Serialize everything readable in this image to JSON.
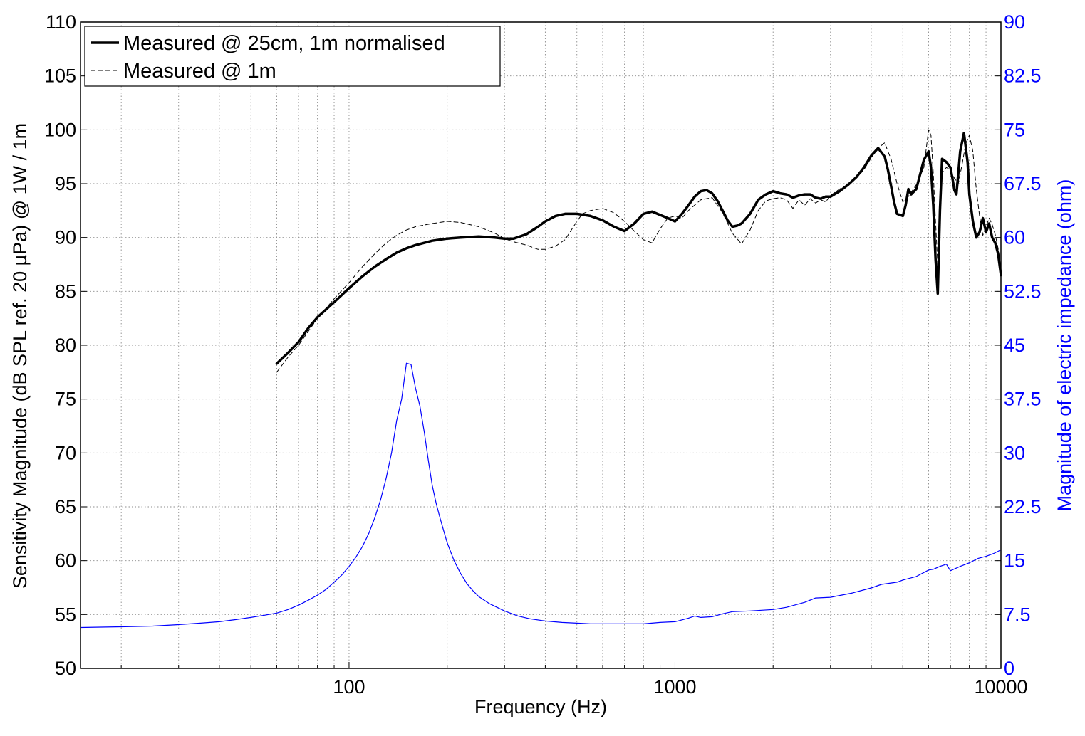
{
  "chart_data": {
    "type": "line",
    "title": "",
    "xlabel": "Frequency (Hz)",
    "ylabel_left": "Sensitivity Magnitude (dB SPL ref. 20 µPa) @ 1W / 1m",
    "ylabel_right": "Magnitude of electric impedance (ohm)",
    "x_scale": "log",
    "xlim": [
      15,
      10000
    ],
    "ylim_left": [
      50,
      110
    ],
    "ylim_right": [
      0,
      90
    ],
    "x_ticks": [
      100,
      1000,
      10000
    ],
    "x_tick_labels": [
      "100",
      "1000",
      "10000"
    ],
    "y_left_ticks": [
      50,
      55,
      60,
      65,
      70,
      75,
      80,
      85,
      90,
      95,
      100,
      105,
      110
    ],
    "y_left_tick_labels": [
      "50",
      "55",
      "60",
      "65",
      "70",
      "75",
      "80",
      "85",
      "90",
      "95",
      "100",
      "105",
      "110"
    ],
    "y_right_ticks": [
      0,
      7.5,
      15,
      22.5,
      30,
      37.5,
      45,
      52.5,
      60,
      67.5,
      75,
      82.5,
      90
    ],
    "y_right_tick_labels": [
      "0",
      "7.5",
      "15",
      "22.5",
      "30",
      "37.5",
      "45",
      "52.5",
      "60",
      "67.5",
      "75",
      "82.5",
      "90"
    ],
    "grid": true,
    "legend_position": "top-left",
    "colors": {
      "spl": "#000000",
      "impedance": "#0000ff",
      "grid": "#8c8c8c"
    },
    "series": [
      {
        "name": "Measured @ 25cm, 1m normalised",
        "axis": "left",
        "style": "solid-thick",
        "x": [
          60,
          65,
          70,
          75,
          80,
          90,
          100,
          110,
          120,
          130,
          140,
          150,
          160,
          170,
          180,
          200,
          220,
          250,
          280,
          300,
          320,
          350,
          380,
          400,
          430,
          460,
          500,
          550,
          600,
          650,
          700,
          750,
          800,
          850,
          900,
          950,
          1000,
          1050,
          1100,
          1150,
          1200,
          1250,
          1300,
          1350,
          1400,
          1450,
          1500,
          1550,
          1600,
          1700,
          1800,
          1900,
          2000,
          2100,
          2200,
          2300,
          2400,
          2500,
          2600,
          2700,
          2800,
          2900,
          3000,
          3200,
          3400,
          3600,
          3800,
          4000,
          4200,
          4400,
          4500,
          4600,
          4700,
          4800,
          5000,
          5100,
          5200,
          5300,
          5500,
          5800,
          6000,
          6100,
          6200,
          6300,
          6400,
          6500,
          6600,
          6800,
          7000,
          7100,
          7200,
          7300,
          7400,
          7500,
          7700,
          7900,
          8000,
          8200,
          8400,
          8600,
          8800,
          9000,
          9200,
          9400,
          9600,
          9800,
          10000
        ],
        "y": [
          78.3,
          79.3,
          80.3,
          81.6,
          82.6,
          84.0,
          85.3,
          86.4,
          87.3,
          88.0,
          88.6,
          89.0,
          89.3,
          89.5,
          89.7,
          89.9,
          90.0,
          90.1,
          90.0,
          89.9,
          89.9,
          90.3,
          91.0,
          91.5,
          92.0,
          92.2,
          92.2,
          92.0,
          91.6,
          91.0,
          90.6,
          91.3,
          92.2,
          92.4,
          92.1,
          91.8,
          91.5,
          92.2,
          93.0,
          93.8,
          94.3,
          94.4,
          94.1,
          93.4,
          92.5,
          91.6,
          91.0,
          91.1,
          91.3,
          92.2,
          93.5,
          94.0,
          94.3,
          94.1,
          94.0,
          93.7,
          93.9,
          94.0,
          94.0,
          93.7,
          93.6,
          93.8,
          93.8,
          94.3,
          94.9,
          95.6,
          96.5,
          97.6,
          98.3,
          97.5,
          96.3,
          94.8,
          93.3,
          92.2,
          92.0,
          93.0,
          94.5,
          94.0,
          94.5,
          97.2,
          98.0,
          96.5,
          93.0,
          88.0,
          84.8,
          92.5,
          97.3,
          97.0,
          96.5,
          95.5,
          94.4,
          94.0,
          96.0,
          98.0,
          99.7,
          97.0,
          94.0,
          91.5,
          90.0,
          90.5,
          91.8,
          90.5,
          91.3,
          90.0,
          89.5,
          88.5,
          86.5
        ]
      },
      {
        "name": "Measured @ 1m",
        "axis": "left",
        "style": "dashed-thin",
        "x": [
          60,
          65,
          70,
          80,
          90,
          100,
          110,
          120,
          130,
          140,
          150,
          160,
          180,
          200,
          220,
          250,
          280,
          300,
          320,
          350,
          380,
          400,
          430,
          460,
          500,
          520,
          550,
          600,
          650,
          700,
          750,
          800,
          850,
          900,
          950,
          1000,
          1050,
          1100,
          1200,
          1300,
          1400,
          1500,
          1600,
          1700,
          1800,
          1900,
          2000,
          2100,
          2200,
          2300,
          2400,
          2500,
          2600,
          2700,
          2800,
          2900,
          3000,
          3200,
          3400,
          3600,
          3800,
          4000,
          4200,
          4400,
          4500,
          4600,
          4800,
          5000,
          5200,
          5500,
          5800,
          6000,
          6100,
          6200,
          6300,
          6400,
          6500,
          6600,
          6800,
          7000,
          7200,
          7400,
          7600,
          7800,
          8000,
          8200,
          8400,
          8600,
          8800,
          9000,
          9200,
          9400,
          9600,
          9800,
          10000
        ],
        "y": [
          77.5,
          78.9,
          80.0,
          82.5,
          84.3,
          85.8,
          87.3,
          88.5,
          89.5,
          90.2,
          90.7,
          91.0,
          91.3,
          91.5,
          91.4,
          91.0,
          90.4,
          89.9,
          89.6,
          89.3,
          88.9,
          88.9,
          89.2,
          89.8,
          91.5,
          92.2,
          92.5,
          92.7,
          92.3,
          91.5,
          90.6,
          89.8,
          89.5,
          90.8,
          91.8,
          92.0,
          91.8,
          92.5,
          93.5,
          93.7,
          92.3,
          90.4,
          89.4,
          90.7,
          92.5,
          93.4,
          93.6,
          93.7,
          93.5,
          92.7,
          93.5,
          93.0,
          93.6,
          93.2,
          93.5,
          93.3,
          93.9,
          94.5,
          94.9,
          95.5,
          96.3,
          97.4,
          98.3,
          98.8,
          98.0,
          97.3,
          95.0,
          93.3,
          93.8,
          94.9,
          96.5,
          100.0,
          99.5,
          96.0,
          91.5,
          87.5,
          92.0,
          96.0,
          96.5,
          96.3,
          95.5,
          95.0,
          96.8,
          98.7,
          99.5,
          98.0,
          94.5,
          92.0,
          90.2,
          91.0,
          91.8,
          91.2,
          90.3,
          89.0,
          87.0
        ]
      },
      {
        "name": "",
        "axis": "right",
        "style": "solid-thin",
        "x": [
          15,
          20,
          25,
          30,
          35,
          40,
          45,
          50,
          55,
          60,
          65,
          70,
          75,
          80,
          85,
          90,
          95,
          100,
          105,
          110,
          115,
          120,
          125,
          130,
          135,
          140,
          145,
          150,
          155,
          160,
          165,
          170,
          175,
          180,
          185,
          190,
          195,
          200,
          210,
          220,
          230,
          240,
          250,
          270,
          300,
          330,
          360,
          400,
          450,
          500,
          550,
          600,
          700,
          800,
          900,
          1000,
          1100,
          1150,
          1200,
          1300,
          1400,
          1500,
          1700,
          2000,
          2200,
          2500,
          2700,
          3000,
          3500,
          4000,
          4300,
          4800,
          5000,
          5500,
          6000,
          6200,
          6500,
          6800,
          7000,
          7500,
          8000,
          8500,
          9000,
          9500,
          10000
        ],
        "y": [
          5.7,
          5.8,
          5.9,
          6.1,
          6.3,
          6.5,
          6.8,
          7.1,
          7.4,
          7.7,
          8.2,
          8.8,
          9.5,
          10.2,
          11.0,
          12.0,
          13.0,
          14.2,
          15.5,
          17.0,
          18.8,
          21.0,
          23.5,
          26.5,
          30.0,
          34.5,
          37.5,
          42.5,
          42.3,
          39.0,
          36.5,
          33.0,
          29.0,
          25.5,
          23.0,
          21.0,
          19.2,
          17.5,
          15.0,
          13.2,
          11.8,
          10.8,
          10.0,
          9.0,
          8.0,
          7.3,
          6.9,
          6.6,
          6.4,
          6.3,
          6.2,
          6.2,
          6.2,
          6.2,
          6.4,
          6.5,
          7.0,
          7.3,
          7.1,
          7.2,
          7.6,
          7.9,
          8.0,
          8.2,
          8.5,
          9.2,
          9.8,
          9.9,
          10.5,
          11.2,
          11.7,
          12.0,
          12.3,
          12.8,
          13.7,
          13.8,
          14.2,
          14.5,
          13.6,
          14.2,
          14.7,
          15.3,
          15.6,
          16.0,
          16.5
        ]
      }
    ]
  }
}
